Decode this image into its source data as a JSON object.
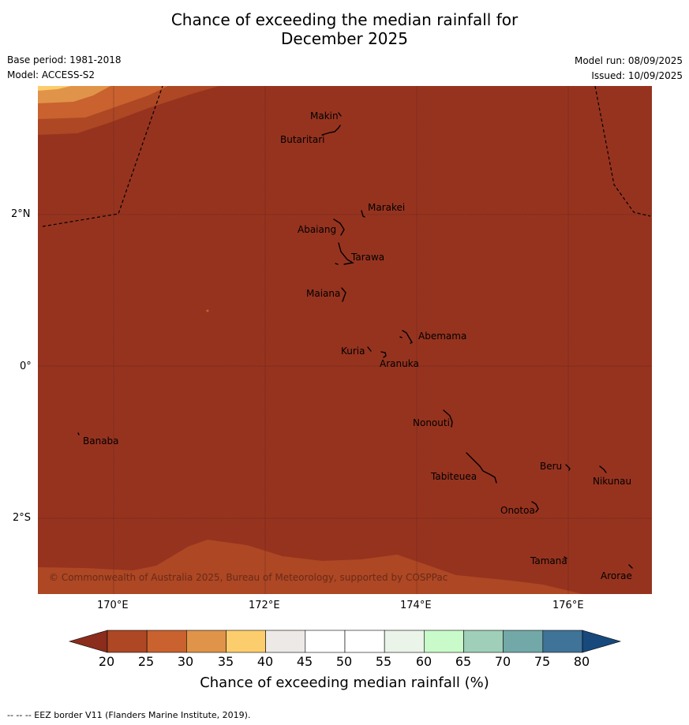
{
  "title_line1": "Chance of exceeding the median rainfall for",
  "title_line2": "December 2025",
  "base_period": "Base period: 1981-2018",
  "model": "Model: ACCESS-S2",
  "model_run": "Model run: 08/09/2025",
  "issued": "Issued: 10/09/2025",
  "lat_labels": {
    "n2": "2°N",
    "eq": "0°",
    "s2": "2°S"
  },
  "lon_labels": {
    "e170": "170°E",
    "e172": "172°E",
    "e174": "174°E",
    "e176": "176°E"
  },
  "places": {
    "makin": "Makin",
    "butaritari": "Butaritari",
    "marakei": "Marakei",
    "abaiang": "Abaiang",
    "tarawa": "Tarawa",
    "maiana": "Maiana",
    "abemama": "Abemama",
    "kuria": "Kuria",
    "aranuka": "Aranuka",
    "banaba": "Banaba",
    "nonouti": "Nonouti",
    "beru": "Beru",
    "tabiteuea": "Tabiteuea",
    "nikunau": "Nikunau",
    "onotoa": "Onotoa",
    "tamana": "Tamana",
    "arorae": "Arorae"
  },
  "copyright": "© Commonwealth of Australia 2025, Bureau of Meteorology, supported by COSPPac",
  "colorbar": {
    "ticks": [
      "20",
      "25",
      "30",
      "35",
      "40",
      "45",
      "50",
      "55",
      "60",
      "65",
      "70",
      "75",
      "80"
    ],
    "colors": [
      "#ad4724",
      "#c9622f",
      "#e09449",
      "#fccd6c",
      "#ece9e6",
      "#ffffff",
      "#ffffff",
      "#eaf4e9",
      "#c8fbc9",
      "#9fcfb8",
      "#72a8a8",
      "#3f7398",
      "#17497c"
    ],
    "low_color": "#8b2c1c",
    "label": "Chance of exceeding median rainfall (%)"
  },
  "map_colors": {
    "lt20": "#96331f",
    "c20_25": "#ad4724",
    "c25_30": "#c9622f",
    "c30_35": "#e09449",
    "c35_40": "#fccd6c"
  },
  "footnote": "--  --  -- EEZ border V11 (Flanders Marine Institute, 2019)."
}
